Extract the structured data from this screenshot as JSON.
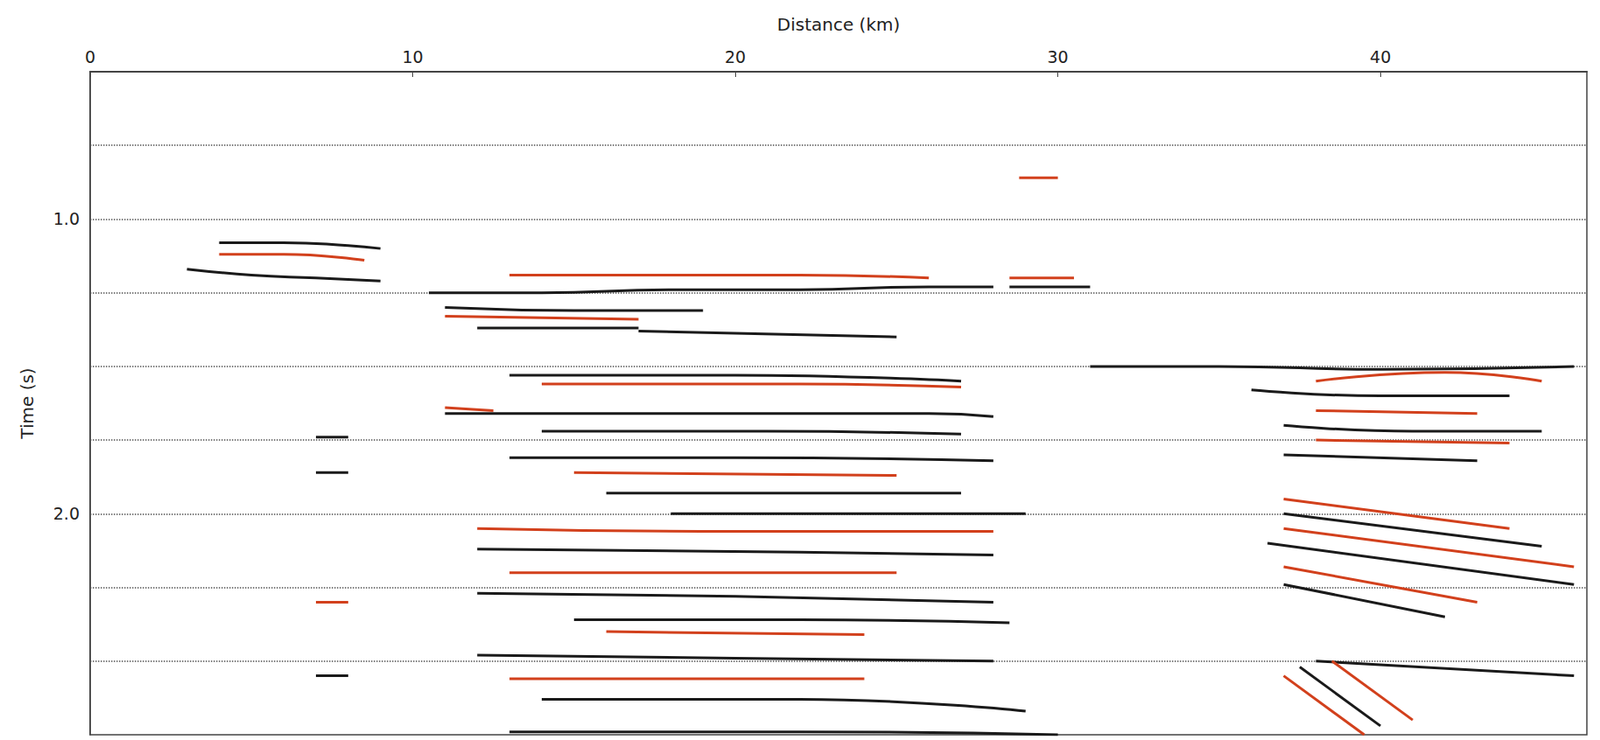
{
  "chart_data": {
    "type": "line",
    "x_label": "Distance (km)",
    "y_label": "Time (s)",
    "xlim": [
      0,
      46.4
    ],
    "xticks": [
      0,
      10,
      20,
      30,
      40
    ],
    "ylim": [
      0.5,
      2.75
    ],
    "yticks": [
      {
        "value": 1,
        "label": "1.0"
      },
      {
        "value": 2,
        "label": "2.0"
      }
    ],
    "ygrid": [
      0.75,
      1.0,
      1.25,
      1.5,
      1.75,
      2.0,
      2.25,
      2.5
    ],
    "grid": true,
    "marker": "none",
    "line_style": "solid",
    "series": [
      {
        "color": "#1a1a1a",
        "x": [
          4,
          6,
          8,
          9
        ],
        "values": [
          1.08,
          1.08,
          1.09,
          1.1
        ]
      },
      {
        "color": "#d2401c",
        "x": [
          4,
          6,
          8.5
        ],
        "values": [
          1.12,
          1.12,
          1.14
        ]
      },
      {
        "color": "#1a1a1a",
        "x": [
          3,
          5,
          7,
          9
        ],
        "values": [
          1.17,
          1.19,
          1.2,
          1.21
        ]
      },
      {
        "color": "#1a1a1a",
        "x": [
          10.5,
          14,
          18,
          22,
          26,
          28
        ],
        "values": [
          1.25,
          1.25,
          1.24,
          1.24,
          1.23,
          1.23
        ]
      },
      {
        "color": "#d2401c",
        "x": [
          13,
          18,
          22,
          26
        ],
        "values": [
          1.19,
          1.19,
          1.19,
          1.2
        ]
      },
      {
        "color": "#1a1a1a",
        "x": [
          28.5,
          31
        ],
        "values": [
          1.23,
          1.23
        ]
      },
      {
        "color": "#d2401c",
        "x": [
          28.5,
          30.5
        ],
        "values": [
          1.2,
          1.2
        ]
      },
      {
        "color": "#d2401c",
        "x": [
          28.8,
          30
        ],
        "values": [
          0.86,
          0.86
        ]
      },
      {
        "color": "#1a1a1a",
        "x": [
          11,
          15,
          19
        ],
        "values": [
          1.3,
          1.31,
          1.31
        ]
      },
      {
        "color": "#d2401c",
        "x": [
          11,
          17
        ],
        "values": [
          1.33,
          1.34
        ]
      },
      {
        "color": "#1a1a1a",
        "x": [
          12,
          17
        ],
        "values": [
          1.37,
          1.37
        ]
      },
      {
        "color": "#1a1a1a",
        "x": [
          17,
          25
        ],
        "values": [
          1.38,
          1.4
        ]
      },
      {
        "color": "#1a1a1a",
        "x": [
          13,
          20,
          27
        ],
        "values": [
          1.53,
          1.53,
          1.55
        ]
      },
      {
        "color": "#d2401c",
        "x": [
          14,
          22,
          27
        ],
        "values": [
          1.56,
          1.56,
          1.57
        ]
      },
      {
        "color": "#1a1a1a",
        "x": [
          11,
          18,
          26,
          28
        ],
        "values": [
          1.66,
          1.66,
          1.66,
          1.67
        ]
      },
      {
        "color": "#d2401c",
        "x": [
          11,
          12.5
        ],
        "values": [
          1.64,
          1.65
        ]
      },
      {
        "color": "#1a1a1a",
        "x": [
          14,
          21,
          27
        ],
        "values": [
          1.72,
          1.72,
          1.73
        ]
      },
      {
        "color": "#1a1a1a",
        "x": [
          13,
          20,
          28
        ],
        "values": [
          1.81,
          1.81,
          1.82
        ]
      },
      {
        "color": "#d2401c",
        "x": [
          15,
          25
        ],
        "values": [
          1.86,
          1.87
        ]
      },
      {
        "color": "#1a1a1a",
        "x": [
          16,
          27
        ],
        "values": [
          1.93,
          1.93
        ]
      },
      {
        "color": "#1a1a1a",
        "x": [
          18,
          29
        ],
        "values": [
          2.0,
          2.0
        ]
      },
      {
        "color": "#d2401c",
        "x": [
          12,
          20,
          28
        ],
        "values": [
          2.05,
          2.06,
          2.06
        ]
      },
      {
        "color": "#1a1a1a",
        "x": [
          12,
          22,
          28
        ],
        "values": [
          2.12,
          2.13,
          2.14
        ]
      },
      {
        "color": "#d2401c",
        "x": [
          13,
          25
        ],
        "values": [
          2.2,
          2.2
        ]
      },
      {
        "color": "#1a1a1a",
        "x": [
          12,
          20,
          28
        ],
        "values": [
          2.27,
          2.28,
          2.3
        ]
      },
      {
        "color": "#1a1a1a",
        "x": [
          15,
          22,
          28.5
        ],
        "values": [
          2.36,
          2.36,
          2.37
        ]
      },
      {
        "color": "#d2401c",
        "x": [
          16,
          24
        ],
        "values": [
          2.4,
          2.41
        ]
      },
      {
        "color": "#1a1a1a",
        "x": [
          12,
          20,
          28
        ],
        "values": [
          2.48,
          2.49,
          2.5
        ]
      },
      {
        "color": "#d2401c",
        "x": [
          13,
          24
        ],
        "values": [
          2.56,
          2.56
        ]
      },
      {
        "color": "#1a1a1a",
        "x": [
          14,
          22,
          29
        ],
        "values": [
          2.63,
          2.63,
          2.67
        ]
      },
      {
        "color": "#1a1a1a",
        "x": [
          13,
          22,
          30
        ],
        "values": [
          2.74,
          2.74,
          2.75
        ]
      },
      {
        "color": "#1a1a1a",
        "x": [
          7,
          8
        ],
        "values": [
          1.74,
          1.74
        ]
      },
      {
        "color": "#1a1a1a",
        "x": [
          7,
          8
        ],
        "values": [
          1.86,
          1.86
        ]
      },
      {
        "color": "#d2401c",
        "x": [
          7,
          8
        ],
        "values": [
          2.3,
          2.3
        ]
      },
      {
        "color": "#1a1a1a",
        "x": [
          7,
          8
        ],
        "values": [
          2.55,
          2.55
        ]
      },
      {
        "color": "#1a1a1a",
        "x": [
          31,
          35,
          40,
          46
        ],
        "values": [
          1.5,
          1.5,
          1.51,
          1.5
        ]
      },
      {
        "color": "#d2401c",
        "x": [
          38,
          42,
          45
        ],
        "values": [
          1.55,
          1.52,
          1.55
        ]
      },
      {
        "color": "#1a1a1a",
        "x": [
          36,
          40,
          44
        ],
        "values": [
          1.58,
          1.6,
          1.6
        ]
      },
      {
        "color": "#d2401c",
        "x": [
          38,
          43
        ],
        "values": [
          1.65,
          1.66
        ]
      },
      {
        "color": "#1a1a1a",
        "x": [
          37,
          41,
          45
        ],
        "values": [
          1.7,
          1.72,
          1.72
        ]
      },
      {
        "color": "#d2401c",
        "x": [
          38,
          44
        ],
        "values": [
          1.75,
          1.76
        ]
      },
      {
        "color": "#1a1a1a",
        "x": [
          37,
          43
        ],
        "values": [
          1.8,
          1.82
        ]
      },
      {
        "color": "#d2401c",
        "x": [
          37,
          44
        ],
        "values": [
          1.95,
          2.05
        ]
      },
      {
        "color": "#1a1a1a",
        "x": [
          37,
          45
        ],
        "values": [
          2.0,
          2.11
        ]
      },
      {
        "color": "#d2401c",
        "x": [
          37,
          46
        ],
        "values": [
          2.05,
          2.18
        ]
      },
      {
        "color": "#1a1a1a",
        "x": [
          36.5,
          46
        ],
        "values": [
          2.1,
          2.24
        ]
      },
      {
        "color": "#d2401c",
        "x": [
          37,
          43
        ],
        "values": [
          2.18,
          2.3
        ]
      },
      {
        "color": "#1a1a1a",
        "x": [
          37,
          42
        ],
        "values": [
          2.24,
          2.35
        ]
      },
      {
        "color": "#1a1a1a",
        "x": [
          38,
          46
        ],
        "values": [
          2.5,
          2.55
        ]
      },
      {
        "color": "#d2401c",
        "x": [
          37,
          39.5
        ],
        "values": [
          2.55,
          2.75
        ]
      },
      {
        "color": "#1a1a1a",
        "x": [
          37.5,
          40
        ],
        "values": [
          2.52,
          2.72
        ]
      },
      {
        "color": "#d2401c",
        "x": [
          38.5,
          41
        ],
        "values": [
          2.5,
          2.7
        ]
      }
    ]
  }
}
